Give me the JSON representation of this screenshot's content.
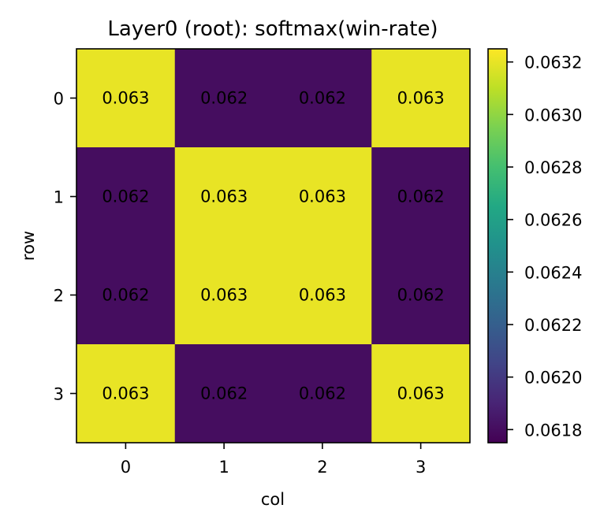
{
  "chart_data": {
    "type": "heatmap",
    "title": "Layer0 (root): softmax(win-rate)",
    "xlabel": "col",
    "ylabel": "row",
    "x_categories": [
      "0",
      "1",
      "2",
      "3"
    ],
    "y_categories": [
      "0",
      "1",
      "2",
      "3"
    ],
    "values": [
      [
        0.0632,
        0.0618,
        0.0618,
        0.0632
      ],
      [
        0.0618,
        0.0632,
        0.0632,
        0.0618
      ],
      [
        0.0618,
        0.0632,
        0.0632,
        0.0618
      ],
      [
        0.0632,
        0.0618,
        0.0618,
        0.0632
      ]
    ],
    "cell_labels": [
      [
        "0.063",
        "0.062",
        "0.062",
        "0.063"
      ],
      [
        "0.062",
        "0.063",
        "0.063",
        "0.062"
      ],
      [
        "0.062",
        "0.063",
        "0.063",
        "0.062"
      ],
      [
        "0.063",
        "0.062",
        "0.062",
        "0.063"
      ]
    ],
    "colormap": "viridis",
    "colorbar": {
      "range": [
        0.06175,
        0.06325
      ],
      "ticks": [
        0.0618,
        0.062,
        0.0622,
        0.0624,
        0.0626,
        0.0628,
        0.063,
        0.0632
      ],
      "tick_labels": [
        "0.0618",
        "0.0620",
        "0.0622",
        "0.0624",
        "0.0626",
        "0.0628",
        "0.0630",
        "0.0632"
      ]
    },
    "colors": {
      "low": "#440154",
      "high": "#fde725"
    }
  }
}
